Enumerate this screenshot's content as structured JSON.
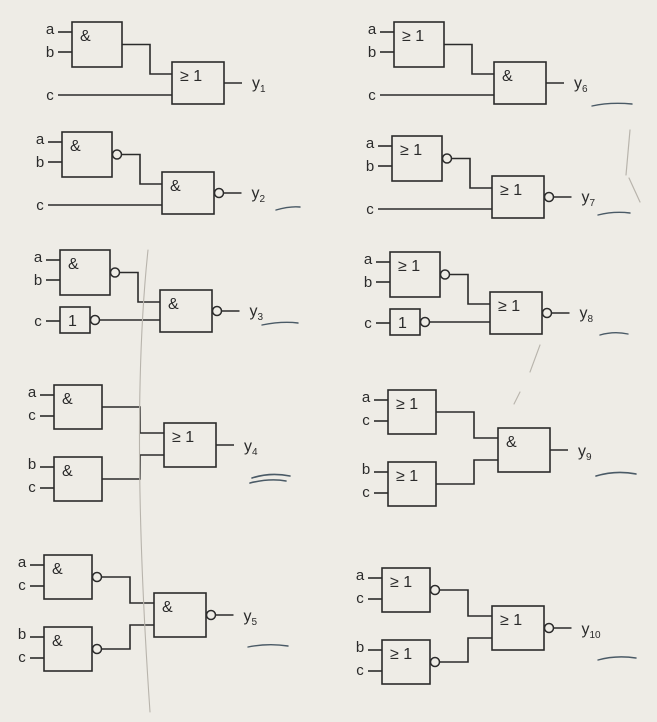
{
  "colors": {
    "paper": "#eeece6",
    "ink": "#2b2b2b",
    "pencil": "#b8b4ac",
    "pen": "#4a5a66"
  },
  "gate_symbols": {
    "and": "&",
    "or": "≥ 1",
    "not": "1"
  },
  "circuits": [
    {
      "id": "y1",
      "output": {
        "name": "y",
        "index": "1"
      },
      "inputs": [
        "a",
        "b",
        "c"
      ],
      "gates": [
        {
          "id": "g1",
          "type": "and",
          "inputs": [
            "a",
            "b"
          ],
          "inverted": false
        },
        {
          "id": "g2",
          "type": "or",
          "inputs": [
            "g1",
            "c"
          ],
          "inverted": false
        }
      ]
    },
    {
      "id": "y2",
      "output": {
        "name": "y",
        "index": "2"
      },
      "inputs": [
        "a",
        "b",
        "c"
      ],
      "gates": [
        {
          "id": "g1",
          "type": "and",
          "inputs": [
            "a",
            "b"
          ],
          "inverted": true
        },
        {
          "id": "g2",
          "type": "and",
          "inputs": [
            "g1",
            "c"
          ],
          "inverted": true
        }
      ]
    },
    {
      "id": "y3",
      "output": {
        "name": "y",
        "index": "3"
      },
      "inputs": [
        "a",
        "b",
        "c"
      ],
      "gates": [
        {
          "id": "g1",
          "type": "and",
          "inputs": [
            "a",
            "b"
          ],
          "inverted": true
        },
        {
          "id": "g2",
          "type": "not",
          "inputs": [
            "c"
          ],
          "inverted": true
        },
        {
          "id": "g3",
          "type": "and",
          "inputs": [
            "g1",
            "g2"
          ],
          "inverted": true
        }
      ]
    },
    {
      "id": "y4",
      "output": {
        "name": "y",
        "index": "4"
      },
      "inputs": [
        "a",
        "c",
        "b",
        "c"
      ],
      "gates": [
        {
          "id": "g1",
          "type": "and",
          "inputs": [
            "a",
            "c"
          ],
          "inverted": false
        },
        {
          "id": "g2",
          "type": "and",
          "inputs": [
            "b",
            "c"
          ],
          "inverted": false
        },
        {
          "id": "g3",
          "type": "or",
          "inputs": [
            "g1",
            "g2"
          ],
          "inverted": false
        }
      ]
    },
    {
      "id": "y5",
      "output": {
        "name": "y",
        "index": "5"
      },
      "inputs": [
        "a",
        "c",
        "b",
        "c"
      ],
      "gates": [
        {
          "id": "g1",
          "type": "and",
          "inputs": [
            "a",
            "c"
          ],
          "inverted": true
        },
        {
          "id": "g2",
          "type": "and",
          "inputs": [
            "b",
            "c"
          ],
          "inverted": true
        },
        {
          "id": "g3",
          "type": "and",
          "inputs": [
            "g1",
            "g2"
          ],
          "inverted": true
        }
      ]
    },
    {
      "id": "y6",
      "output": {
        "name": "y",
        "index": "6"
      },
      "inputs": [
        "a",
        "b",
        "c"
      ],
      "gates": [
        {
          "id": "g1",
          "type": "or",
          "inputs": [
            "a",
            "b"
          ],
          "inverted": false
        },
        {
          "id": "g2",
          "type": "and",
          "inputs": [
            "g1",
            "c"
          ],
          "inverted": false
        }
      ]
    },
    {
      "id": "y7",
      "output": {
        "name": "y",
        "index": "7"
      },
      "inputs": [
        "a",
        "b",
        "c"
      ],
      "gates": [
        {
          "id": "g1",
          "type": "or",
          "inputs": [
            "a",
            "b"
          ],
          "inverted": true
        },
        {
          "id": "g2",
          "type": "or",
          "inputs": [
            "g1",
            "c"
          ],
          "inverted": true
        }
      ]
    },
    {
      "id": "y8",
      "output": {
        "name": "y",
        "index": "8"
      },
      "inputs": [
        "a",
        "b",
        "c"
      ],
      "gates": [
        {
          "id": "g1",
          "type": "or",
          "inputs": [
            "a",
            "b"
          ],
          "inverted": true
        },
        {
          "id": "g2",
          "type": "not",
          "inputs": [
            "c"
          ],
          "inverted": true
        },
        {
          "id": "g3",
          "type": "or",
          "inputs": [
            "g1",
            "g2"
          ],
          "inverted": true
        }
      ]
    },
    {
      "id": "y9",
      "output": {
        "name": "y",
        "index": "9"
      },
      "inputs": [
        "a",
        "c",
        "b",
        "c"
      ],
      "gates": [
        {
          "id": "g1",
          "type": "or",
          "inputs": [
            "a",
            "c"
          ],
          "inverted": false
        },
        {
          "id": "g2",
          "type": "or",
          "inputs": [
            "b",
            "c"
          ],
          "inverted": false
        },
        {
          "id": "g3",
          "type": "and",
          "inputs": [
            "g1",
            "g2"
          ],
          "inverted": false
        }
      ]
    },
    {
      "id": "y10",
      "output": {
        "name": "y",
        "index": "10"
      },
      "inputs": [
        "a",
        "c",
        "b",
        "c"
      ],
      "gates": [
        {
          "id": "g1",
          "type": "or",
          "inputs": [
            "a",
            "c"
          ],
          "inverted": true
        },
        {
          "id": "g2",
          "type": "or",
          "inputs": [
            "b",
            "c"
          ],
          "inverted": true
        },
        {
          "id": "g3",
          "type": "or",
          "inputs": [
            "g1",
            "g2"
          ],
          "inverted": true
        }
      ]
    }
  ]
}
